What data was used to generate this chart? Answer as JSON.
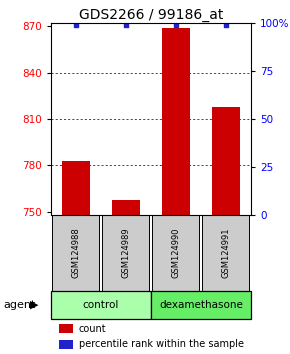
{
  "title": "GDS2266 / 99186_at",
  "samples": [
    "GSM124988",
    "GSM124989",
    "GSM124990",
    "GSM124991"
  ],
  "counts": [
    783,
    758,
    869,
    818
  ],
  "percentiles": [
    99,
    99,
    99,
    99
  ],
  "ylim_left": [
    748,
    872
  ],
  "ylim_right": [
    0,
    100
  ],
  "yticks_left": [
    750,
    780,
    810,
    840,
    870
  ],
  "yticks_right": [
    0,
    25,
    50,
    75,
    100
  ],
  "ytick_labels_right": [
    "0",
    "25",
    "50",
    "75",
    "100%"
  ],
  "bar_color": "#cc0000",
  "dot_color": "#2222cc",
  "grid_yticks": [
    780,
    810,
    840
  ],
  "agent_label": "agent",
  "control_label": "control",
  "dexa_label": "dexamethasone",
  "legend_count": "count",
  "legend_percentile": "percentile rank within the sample",
  "control_color": "#aaffaa",
  "dexa_color": "#66ee66",
  "sample_box_color": "#cccccc",
  "title_fontsize": 10,
  "tick_fontsize": 7.5,
  "label_fontsize": 8.5,
  "sample_fontsize": 6,
  "legend_fontsize": 7,
  "agent_fontsize": 8
}
